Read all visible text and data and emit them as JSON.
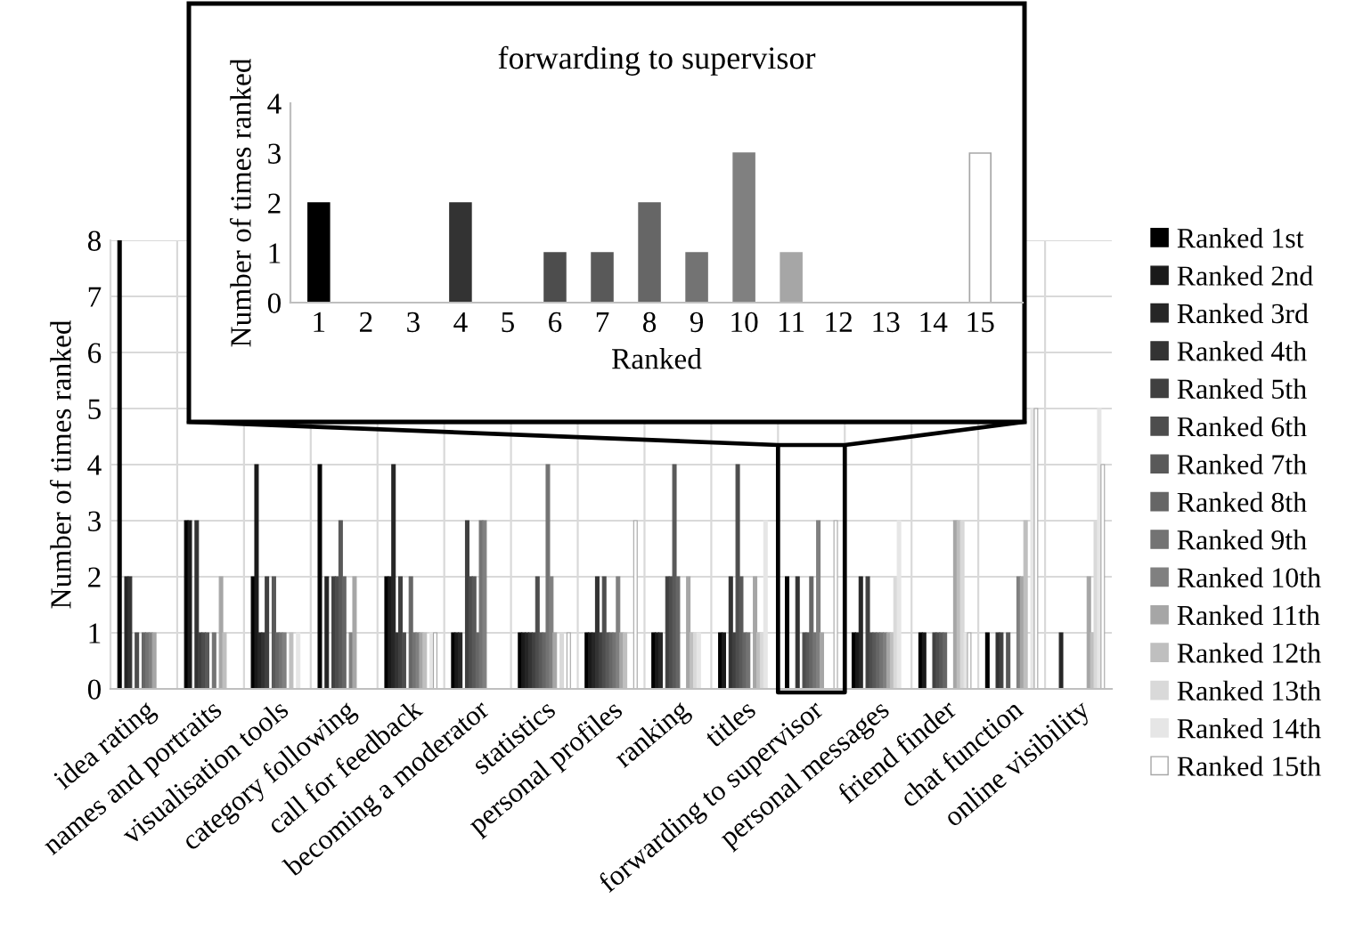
{
  "chart_data": [
    {
      "type": "bar",
      "ylabel": "Number of times ranked",
      "categories": [
        "idea rating",
        "names and portraits",
        "visualisation tools",
        "category following",
        "call for feedback",
        "becoming a moderator",
        "statistics",
        "personal profiles",
        "ranking",
        "titles",
        "forwarding to supervisor",
        "personal messages",
        "friend finder",
        "chat function",
        "online visibility"
      ],
      "ylim": [
        0,
        8
      ],
      "yticks": [
        0,
        1,
        2,
        3,
        4,
        5,
        6,
        7,
        8
      ],
      "grid": true,
      "legend": "right",
      "series": [
        {
          "name": "Ranked 1st",
          "color": "#000000",
          "values": [
            8,
            3,
            2,
            4,
            2,
            1,
            1,
            1,
            1,
            1,
            2,
            1,
            1,
            1,
            0
          ]
        },
        {
          "name": "Ranked 2nd",
          "color": "#1a1a1a",
          "values": [
            0,
            3,
            4,
            0,
            2,
            1,
            1,
            1,
            1,
            1,
            0,
            1,
            1,
            0,
            0
          ]
        },
        {
          "name": "Ranked 3rd",
          "color": "#262626",
          "values": [
            2,
            0,
            1,
            2,
            4,
            1,
            1,
            1,
            1,
            0,
            0,
            2,
            0,
            0,
            1
          ]
        },
        {
          "name": "Ranked 4th",
          "color": "#333333",
          "values": [
            2,
            3,
            1,
            0,
            1,
            0,
            1,
            2,
            0,
            2,
            2,
            0,
            0,
            1,
            0
          ]
        },
        {
          "name": "Ranked 5th",
          "color": "#404040",
          "values": [
            0,
            1,
            2,
            2,
            2,
            3,
            1,
            1,
            2,
            1,
            0,
            2,
            1,
            1,
            0
          ]
        },
        {
          "name": "Ranked 6th",
          "color": "#4d4d4d",
          "values": [
            1,
            1,
            0,
            2,
            1,
            2,
            2,
            2,
            2,
            4,
            1,
            1,
            1,
            0,
            0
          ]
        },
        {
          "name": "Ranked 7th",
          "color": "#595959",
          "values": [
            0,
            1,
            2,
            3,
            0,
            2,
            1,
            1,
            4,
            2,
            1,
            1,
            1,
            1,
            0
          ]
        },
        {
          "name": "Ranked 8th",
          "color": "#666666",
          "values": [
            1,
            0,
            1,
            2,
            2,
            1,
            1,
            1,
            2,
            1,
            2,
            1,
            1,
            0,
            0
          ]
        },
        {
          "name": "Ranked 9th",
          "color": "#737373",
          "values": [
            1,
            1,
            1,
            0,
            1,
            3,
            4,
            1,
            0,
            1,
            1,
            1,
            0,
            0,
            0
          ]
        },
        {
          "name": "Ranked 10th",
          "color": "#808080",
          "values": [
            1,
            0,
            1,
            1,
            1,
            3,
            2,
            2,
            0,
            0,
            3,
            1,
            0,
            2,
            0
          ]
        },
        {
          "name": "Ranked 11th",
          "color": "#a6a6a6",
          "values": [
            1,
            2,
            0,
            2,
            1,
            0,
            1,
            1,
            2,
            2,
            1,
            1,
            3,
            2,
            2
          ]
        },
        {
          "name": "Ranked 12th",
          "color": "#bfbfbf",
          "values": [
            0,
            1,
            1,
            0,
            1,
            0,
            0,
            1,
            1,
            1,
            0,
            1,
            3,
            3,
            1
          ]
        },
        {
          "name": "Ranked 13th",
          "color": "#d9d9d9",
          "values": [
            0,
            0,
            0,
            0,
            0,
            0,
            1,
            0,
            1,
            1,
            0,
            2,
            3,
            0,
            3
          ]
        },
        {
          "name": "Ranked 14th",
          "color": "#e6e6e6",
          "values": [
            0,
            0,
            1,
            0,
            1,
            0,
            0,
            0,
            1,
            3,
            0,
            3,
            1,
            5,
            5
          ]
        },
        {
          "name": "Ranked 15th",
          "color": "#ffffff",
          "values": [
            0,
            0,
            0,
            0,
            1,
            0,
            1,
            3,
            0,
            0,
            3,
            0,
            1,
            5,
            4
          ]
        }
      ]
    },
    {
      "type": "bar",
      "title": "forwarding to supervisor",
      "xlabel": "Ranked",
      "ylabel": "Number of times ranked",
      "categories": [
        "1",
        "2",
        "3",
        "4",
        "5",
        "6",
        "7",
        "8",
        "9",
        "10",
        "11",
        "12",
        "13",
        "14",
        "15"
      ],
      "values": [
        2,
        0,
        0,
        2,
        0,
        1,
        1,
        2,
        1,
        3,
        1,
        0,
        0,
        0,
        3
      ],
      "colors": [
        "#000000",
        "#1a1a1a",
        "#262626",
        "#333333",
        "#404040",
        "#4d4d4d",
        "#595959",
        "#666666",
        "#737373",
        "#808080",
        "#a6a6a6",
        "#bfbfbf",
        "#d9d9d9",
        "#e6e6e6",
        "#ffffff"
      ],
      "ylim": [
        0,
        4
      ],
      "yticks": [
        0,
        1,
        2,
        3,
        4
      ]
    }
  ]
}
